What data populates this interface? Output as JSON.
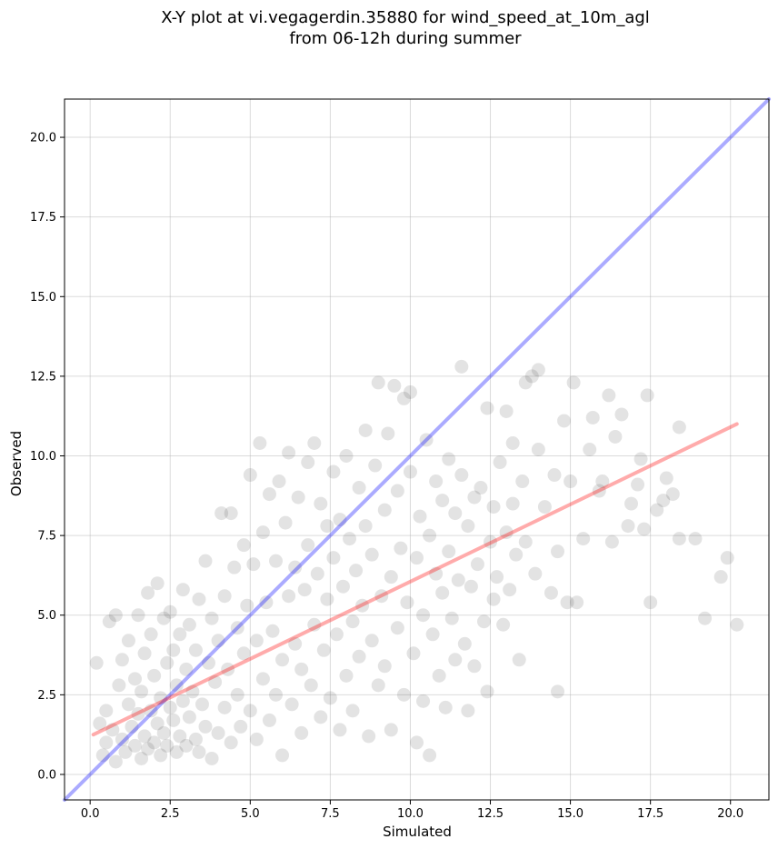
{
  "chart_data": {
    "type": "scatter",
    "title_lines": [
      "X-Y plot at vi.vegagerdin.35880 for wind_speed_at_10m_agl",
      "from 06-12h during summer"
    ],
    "xlabel": "Simulated",
    "ylabel": "Observed",
    "xlim": [
      -0.8,
      21.2
    ],
    "ylim": [
      -0.8,
      21.2
    ],
    "xticks": [
      0.0,
      2.5,
      5.0,
      7.5,
      10.0,
      12.5,
      15.0,
      17.5,
      20.0
    ],
    "yticks": [
      0.0,
      2.5,
      5.0,
      7.5,
      10.0,
      12.5,
      15.0,
      17.5,
      20.0
    ],
    "xtick_labels": [
      "0.0",
      "2.5",
      "5.0",
      "7.5",
      "10.0",
      "12.5",
      "15.0",
      "17.5",
      "20.0"
    ],
    "ytick_labels": [
      "0.0",
      "2.5",
      "5.0",
      "7.5",
      "10.0",
      "12.5",
      "15.0",
      "17.5",
      "20.0"
    ],
    "grid": true,
    "point_color": "#000000",
    "identity_line": {
      "x": [
        -0.8,
        21.2
      ],
      "y": [
        -0.8,
        21.2
      ],
      "color": "#0000ff"
    },
    "fit_line": {
      "x": [
        0.1,
        20.2
      ],
      "y": [
        1.25,
        11.0
      ],
      "color": "#ff0000"
    },
    "points": [
      [
        0.2,
        3.5
      ],
      [
        0.3,
        1.6
      ],
      [
        0.4,
        0.6
      ],
      [
        0.5,
        1.0
      ],
      [
        0.5,
        2.0
      ],
      [
        0.6,
        4.8
      ],
      [
        0.7,
        1.4
      ],
      [
        0.8,
        5.0
      ],
      [
        0.8,
        0.4
      ],
      [
        0.9,
        2.8
      ],
      [
        1.0,
        1.1
      ],
      [
        1.0,
        3.6
      ],
      [
        1.1,
        0.7
      ],
      [
        1.2,
        2.2
      ],
      [
        1.2,
        4.2
      ],
      [
        1.3,
        1.5
      ],
      [
        1.4,
        0.9
      ],
      [
        1.4,
        3.0
      ],
      [
        1.5,
        5.0
      ],
      [
        1.5,
        1.9
      ],
      [
        1.6,
        0.5
      ],
      [
        1.6,
        2.6
      ],
      [
        1.7,
        1.2
      ],
      [
        1.7,
        3.8
      ],
      [
        1.8,
        5.7
      ],
      [
        1.8,
        0.8
      ],
      [
        1.9,
        2.0
      ],
      [
        1.9,
        4.4
      ],
      [
        2.0,
        1.0
      ],
      [
        2.0,
        3.1
      ],
      [
        2.1,
        6.0
      ],
      [
        2.1,
        1.6
      ],
      [
        2.2,
        0.6
      ],
      [
        2.2,
        2.4
      ],
      [
        2.3,
        4.9
      ],
      [
        2.3,
        1.3
      ],
      [
        2.4,
        3.5
      ],
      [
        2.4,
        0.9
      ],
      [
        2.5,
        2.1
      ],
      [
        2.5,
        5.1
      ],
      [
        2.6,
        1.7
      ],
      [
        2.6,
        3.9
      ],
      [
        2.7,
        0.7
      ],
      [
        2.7,
        2.8
      ],
      [
        2.8,
        4.4
      ],
      [
        2.8,
        1.2
      ],
      [
        2.9,
        5.8
      ],
      [
        2.9,
        2.3
      ],
      [
        3.0,
        0.9
      ],
      [
        3.0,
        3.3
      ],
      [
        3.1,
        1.8
      ],
      [
        3.1,
        4.7
      ],
      [
        3.2,
        2.6
      ],
      [
        3.3,
        1.1
      ],
      [
        3.3,
        3.9
      ],
      [
        3.4,
        5.5
      ],
      [
        3.4,
        0.7
      ],
      [
        3.5,
        2.2
      ],
      [
        3.6,
        6.7
      ],
      [
        3.6,
        1.5
      ],
      [
        3.7,
        3.5
      ],
      [
        3.8,
        4.9
      ],
      [
        3.8,
        0.5
      ],
      [
        3.9,
        2.9
      ],
      [
        4.0,
        1.3
      ],
      [
        4.0,
        4.2
      ],
      [
        4.1,
        8.2
      ],
      [
        4.2,
        5.6
      ],
      [
        4.2,
        2.1
      ],
      [
        4.3,
        3.3
      ],
      [
        4.4,
        1.0
      ],
      [
        4.4,
        8.2
      ],
      [
        4.5,
        6.5
      ],
      [
        4.6,
        4.6
      ],
      [
        4.6,
        2.5
      ],
      [
        4.7,
        1.5
      ],
      [
        4.8,
        7.2
      ],
      [
        4.8,
        3.8
      ],
      [
        4.9,
        5.3
      ],
      [
        5.0,
        2.0
      ],
      [
        5.0,
        9.4
      ],
      [
        5.1,
        6.6
      ],
      [
        5.2,
        1.1
      ],
      [
        5.2,
        4.2
      ],
      [
        5.3,
        10.4
      ],
      [
        5.4,
        3.0
      ],
      [
        5.4,
        7.6
      ],
      [
        5.5,
        5.4
      ],
      [
        5.6,
        1.7
      ],
      [
        5.6,
        8.8
      ],
      [
        5.7,
        4.5
      ],
      [
        5.8,
        2.5
      ],
      [
        5.8,
        6.7
      ],
      [
        5.9,
        9.2
      ],
      [
        6.0,
        3.6
      ],
      [
        6.0,
        0.6
      ],
      [
        6.1,
        7.9
      ],
      [
        6.2,
        5.6
      ],
      [
        6.2,
        10.1
      ],
      [
        6.3,
        2.2
      ],
      [
        6.4,
        6.5
      ],
      [
        6.4,
        4.1
      ],
      [
        6.5,
        8.7
      ],
      [
        6.6,
        1.3
      ],
      [
        6.6,
        3.3
      ],
      [
        6.7,
        5.8
      ],
      [
        6.8,
        9.8
      ],
      [
        6.8,
        7.2
      ],
      [
        6.9,
        2.8
      ],
      [
        7.0,
        4.7
      ],
      [
        7.0,
        10.4
      ],
      [
        7.1,
        6.3
      ],
      [
        7.2,
        1.8
      ],
      [
        7.2,
        8.5
      ],
      [
        7.3,
        3.9
      ],
      [
        7.4,
        5.5
      ],
      [
        7.4,
        7.8
      ],
      [
        7.5,
        2.4
      ],
      [
        7.6,
        6.8
      ],
      [
        7.6,
        9.5
      ],
      [
        7.7,
        4.4
      ],
      [
        7.8,
        1.4
      ],
      [
        7.8,
        8.0
      ],
      [
        7.9,
        5.9
      ],
      [
        8.0,
        3.1
      ],
      [
        8.0,
        10.0
      ],
      [
        8.1,
        7.4
      ],
      [
        8.2,
        4.8
      ],
      [
        8.2,
        2.0
      ],
      [
        8.3,
        6.4
      ],
      [
        8.4,
        9.0
      ],
      [
        8.4,
        3.7
      ],
      [
        8.5,
        5.3
      ],
      [
        8.6,
        10.8
      ],
      [
        8.6,
        7.8
      ],
      [
        8.7,
        1.2
      ],
      [
        8.8,
        4.2
      ],
      [
        8.8,
        6.9
      ],
      [
        8.9,
        9.7
      ],
      [
        9.0,
        2.8
      ],
      [
        9.0,
        12.3
      ],
      [
        9.1,
        5.6
      ],
      [
        9.2,
        8.3
      ],
      [
        9.2,
        3.4
      ],
      [
        9.3,
        10.7
      ],
      [
        9.4,
        6.2
      ],
      [
        9.4,
        1.4
      ],
      [
        9.5,
        12.2
      ],
      [
        9.6,
        4.6
      ],
      [
        9.6,
        8.9
      ],
      [
        9.7,
        7.1
      ],
      [
        9.8,
        11.8
      ],
      [
        9.8,
        2.5
      ],
      [
        9.9,
        5.4
      ],
      [
        10.0,
        9.5
      ],
      [
        10.0,
        12.0
      ],
      [
        10.1,
        3.8
      ],
      [
        10.2,
        6.8
      ],
      [
        10.2,
        1.0
      ],
      [
        10.3,
        8.1
      ],
      [
        10.4,
        5.0
      ],
      [
        10.4,
        2.3
      ],
      [
        10.5,
        10.5
      ],
      [
        10.6,
        7.5
      ],
      [
        10.6,
        0.6
      ],
      [
        10.7,
        4.4
      ],
      [
        10.8,
        6.3
      ],
      [
        10.8,
        9.2
      ],
      [
        10.9,
        3.1
      ],
      [
        11.0,
        8.6
      ],
      [
        11.0,
        5.7
      ],
      [
        11.1,
        2.1
      ],
      [
        11.2,
        9.9
      ],
      [
        11.2,
        7.0
      ],
      [
        11.3,
        4.9
      ],
      [
        11.4,
        3.6
      ],
      [
        11.4,
        8.2
      ],
      [
        11.5,
        6.1
      ],
      [
        11.6,
        9.4
      ],
      [
        11.6,
        12.8
      ],
      [
        11.7,
        4.1
      ],
      [
        11.8,
        7.8
      ],
      [
        11.8,
        2.0
      ],
      [
        11.9,
        5.9
      ],
      [
        12.0,
        8.7
      ],
      [
        12.0,
        3.4
      ],
      [
        12.1,
        6.6
      ],
      [
        12.2,
        9.0
      ],
      [
        12.3,
        4.8
      ],
      [
        12.4,
        11.5
      ],
      [
        12.4,
        2.6
      ],
      [
        12.5,
        7.3
      ],
      [
        12.6,
        5.5
      ],
      [
        12.6,
        8.4
      ],
      [
        12.7,
        6.2
      ],
      [
        12.8,
        9.8
      ],
      [
        12.9,
        4.7
      ],
      [
        13.0,
        7.6
      ],
      [
        13.0,
        11.4
      ],
      [
        13.1,
        5.8
      ],
      [
        13.2,
        8.5
      ],
      [
        13.2,
        10.4
      ],
      [
        13.3,
        6.9
      ],
      [
        13.4,
        3.6
      ],
      [
        13.5,
        9.2
      ],
      [
        13.6,
        12.3
      ],
      [
        13.6,
        7.3
      ],
      [
        13.8,
        12.5
      ],
      [
        13.9,
        6.3
      ],
      [
        14.0,
        10.2
      ],
      [
        14.0,
        12.7
      ],
      [
        14.2,
        8.4
      ],
      [
        14.4,
        5.7
      ],
      [
        14.5,
        9.4
      ],
      [
        14.6,
        2.6
      ],
      [
        14.6,
        7.0
      ],
      [
        14.8,
        11.1
      ],
      [
        14.9,
        5.4
      ],
      [
        15.0,
        9.2
      ],
      [
        15.1,
        12.3
      ],
      [
        15.2,
        5.4
      ],
      [
        15.4,
        7.4
      ],
      [
        15.6,
        10.2
      ],
      [
        15.7,
        11.2
      ],
      [
        15.9,
        8.9
      ],
      [
        16.0,
        9.2
      ],
      [
        16.2,
        11.9
      ],
      [
        16.3,
        7.3
      ],
      [
        16.4,
        10.6
      ],
      [
        16.6,
        11.3
      ],
      [
        16.8,
        7.8
      ],
      [
        16.9,
        8.5
      ],
      [
        17.1,
        9.1
      ],
      [
        17.2,
        9.9
      ],
      [
        17.3,
        7.7
      ],
      [
        17.4,
        11.9
      ],
      [
        17.5,
        5.4
      ],
      [
        17.7,
        8.3
      ],
      [
        17.9,
        8.6
      ],
      [
        18.0,
        9.3
      ],
      [
        18.2,
        8.8
      ],
      [
        18.4,
        10.9
      ],
      [
        18.4,
        7.4
      ],
      [
        18.9,
        7.4
      ],
      [
        19.2,
        4.9
      ],
      [
        19.7,
        6.2
      ],
      [
        19.9,
        6.8
      ],
      [
        20.2,
        4.7
      ]
    ]
  }
}
